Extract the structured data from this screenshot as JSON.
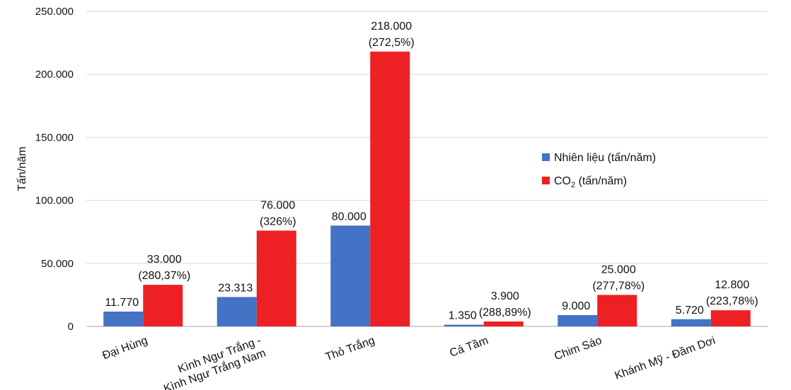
{
  "chart_data": {
    "type": "bar",
    "title": "",
    "xlabel": "",
    "ylabel": "Tấn/năm",
    "ylim": [
      0,
      250000
    ],
    "yticks": [
      "0",
      "50.000",
      "100.000",
      "150.000",
      "200.000",
      "250.000"
    ],
    "grid": true,
    "legend_position": "right",
    "categories": [
      [
        "Đại Hùng"
      ],
      [
        "Kình Ngư Trắng -",
        "Kình Ngư Trắng Nam"
      ],
      [
        "Thỏ Trắng"
      ],
      [
        "Cá Tầm"
      ],
      [
        "Chim Sáo"
      ],
      [
        "Khánh Mỹ - Đầm Dơi"
      ]
    ],
    "series": [
      {
        "name_main": "Nhiên liệu (tấn/năm)",
        "color": "#4472c4",
        "values": [
          11770,
          23313,
          80000,
          1350,
          9000,
          5720
        ],
        "labels": [
          [
            "11.770"
          ],
          [
            "23.313"
          ],
          [
            "80.000"
          ],
          [
            "1.350"
          ],
          [
            "9.000"
          ],
          [
            "5.720"
          ]
        ]
      },
      {
        "name_main": "CO",
        "name_sub": "2",
        "name_rest": " (tấn/năm)",
        "color": "#ed2024",
        "values": [
          33000,
          76000,
          218000,
          3900,
          25000,
          12800
        ],
        "labels": [
          [
            "33.000",
            "(280,37%)"
          ],
          [
            "76.000",
            "(326%)"
          ],
          [
            "218.000",
            "(272,5%)"
          ],
          [
            "3.900",
            "(288,89%)"
          ],
          [
            "25.000",
            "(277,78%)"
          ],
          [
            "12.800",
            "(223,78%)"
          ]
        ]
      }
    ]
  }
}
